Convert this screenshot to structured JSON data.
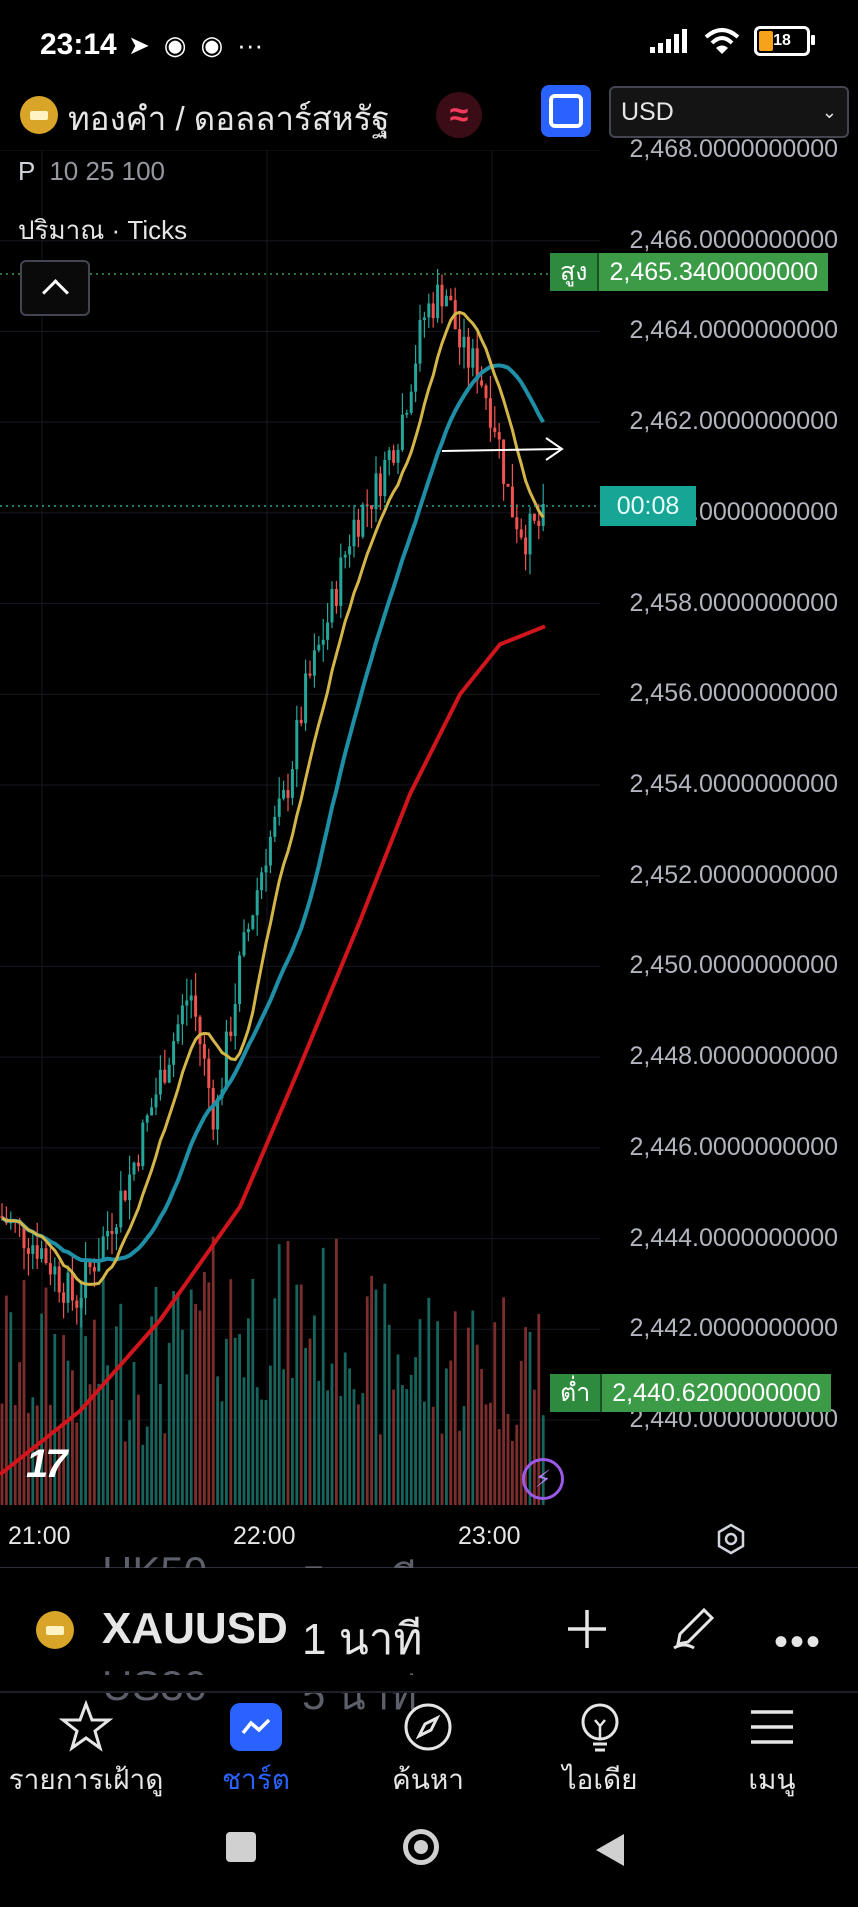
{
  "status_bar": {
    "time": "23:14",
    "app_icons": [
      "paper-plane-icon",
      "telegram-icon",
      "telegram-icon",
      "more-dots-icon"
    ],
    "battery": "18"
  },
  "header": {
    "symbol_name": "ทองคำ / ดอลลาร์สหรัฐ",
    "currency": "USD"
  },
  "chart": {
    "legend_prefix": "P",
    "ma_periods": "10 25 100",
    "volume_label": "ปริมาณ · Ticks",
    "price_axis": [
      "2,468.0000000000",
      "2,466.0000000000",
      "2,464.0000000000",
      "2,462.0000000000",
      "2,460.0000000000",
      "2,458.0000000000",
      "2,456.0000000000",
      "2,454.0000000000",
      "2,452.0000000000",
      "2,450.0000000000",
      "2,448.0000000000",
      "2,446.0000000000",
      "2,444.0000000000",
      "2,442.0000000000",
      "2,440.0000000000"
    ],
    "high_tag": {
      "label": "สูง",
      "value": "2,465.3400000000"
    },
    "low_tag": {
      "label": "ต่ำ",
      "value": "2,440.6200000000"
    },
    "countdown": "00:08",
    "time_axis": [
      "21:00",
      "22:00",
      "23:00"
    ],
    "colors": {
      "up": "#26a69a",
      "down": "#ef5350",
      "ma10": "#d4b548",
      "ma25": "#1e8fa6",
      "ma100": "#d0161c"
    }
  },
  "symbol_bar": {
    "ghost_prev_symbol": "HK50",
    "ghost_prev_tf": "5 นาที",
    "symbol": "XAUUSD",
    "timeframe": "1 นาที",
    "ghost_next_symbol": "US30",
    "ghost_next_tf": "5 นาที"
  },
  "bottom_nav": [
    {
      "label": "รายการเฝ้าดู",
      "icon": "star-icon"
    },
    {
      "label": "ชาร์ต",
      "icon": "chart-icon"
    },
    {
      "label": "ค้นหา",
      "icon": "compass-icon"
    },
    {
      "label": "ไอเดีย",
      "icon": "lightbulb-icon"
    },
    {
      "label": "เมนู",
      "icon": "menu-icon"
    }
  ]
}
